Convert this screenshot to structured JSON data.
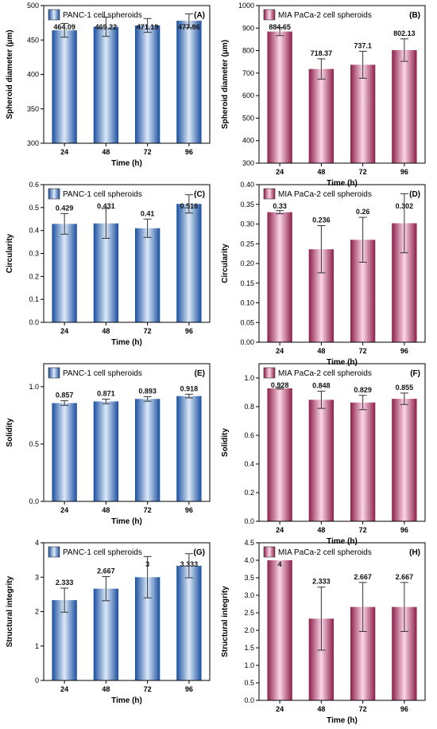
{
  "colors": {
    "blue_dark": "#1a4f9e",
    "blue_light": "#dce9f8",
    "pink_dark": "#8c1f4a",
    "pink_light": "#fbd6e6",
    "axis": "#000000"
  },
  "chart_data": [
    {
      "panel": "(A)",
      "type": "bar",
      "legend": "PANC-1 cell spheroids",
      "legend_position": "top-left",
      "color": "blue",
      "xlabel": "Time (h)",
      "ylabel": "Spheroid diameter (μm)",
      "categories": [
        "24",
        "48",
        "72",
        "96"
      ],
      "values": [
        464.09,
        469.22,
        471.19,
        477.96
      ],
      "value_labels": [
        "464.09",
        "469.22",
        "471.19",
        "477.96"
      ],
      "errors": [
        10,
        14,
        10,
        10
      ],
      "ylim": [
        300,
        500
      ],
      "yticks": [
        "300",
        "350",
        "400",
        "450",
        "500"
      ]
    },
    {
      "panel": "(B)",
      "type": "bar",
      "legend": "MIA PaCa-2 cell spheroids",
      "legend_position": "top-left",
      "color": "pink",
      "xlabel": "Time (h)",
      "ylabel": "Spheroid diameter (μm)",
      "categories": [
        "24",
        "48",
        "72",
        "96"
      ],
      "values": [
        884.65,
        718.37,
        737.1,
        802.13
      ],
      "value_labels": [
        "884.65",
        "718.37",
        "737.1",
        "802.13"
      ],
      "errors": [
        18,
        45,
        60,
        50
      ],
      "ylim": [
        300,
        1000
      ],
      "yticks": [
        "300",
        "400",
        "500",
        "600",
        "700",
        "800",
        "900",
        "1000"
      ]
    },
    {
      "panel": "(C)",
      "type": "bar",
      "legend": "PANC-1 cell spheroids",
      "legend_position": "top-left",
      "color": "blue",
      "xlabel": "Time (h)",
      "ylabel": "Circularity",
      "categories": [
        "24",
        "48",
        "72",
        "96"
      ],
      "values": [
        0.429,
        0.431,
        0.41,
        0.516
      ],
      "value_labels": [
        "0.429",
        "0.431",
        "0.41",
        "0.516"
      ],
      "errors": [
        0.045,
        0.065,
        0.04,
        0.04
      ],
      "ylim": [
        0,
        0.6
      ],
      "yticks": [
        "0.0",
        "0.1",
        "0.2",
        "0.3",
        "0.4",
        "0.5",
        "0.6"
      ]
    },
    {
      "panel": "(D)",
      "type": "bar",
      "legend": "MIA PaCa-2 cell spheroids",
      "legend_position": "top-left",
      "color": "pink",
      "xlabel": "Time (h)",
      "ylabel": "Circularity",
      "categories": [
        "24",
        "48",
        "72",
        "96"
      ],
      "values": [
        0.33,
        0.236,
        0.26,
        0.302
      ],
      "value_labels": [
        "0.33",
        "0.236",
        "0.26",
        "0.302"
      ],
      "errors": [
        0.004,
        0.06,
        0.057,
        0.075
      ],
      "ylim": [
        0,
        0.4
      ],
      "yticks": [
        "0.00",
        "0.05",
        "0.10",
        "0.15",
        "0.20",
        "0.25",
        "0.30",
        "0.35",
        "0.40"
      ]
    },
    {
      "panel": "(E)",
      "type": "bar",
      "legend": "PANC-1 cell spheroids",
      "legend_position": "top-left",
      "color": "blue",
      "xlabel": "Time (h)",
      "ylabel": "Solidity",
      "categories": [
        "24",
        "48",
        "72",
        "96"
      ],
      "values": [
        0.857,
        0.871,
        0.893,
        0.918
      ],
      "value_labels": [
        "0.857",
        "0.871",
        "0.893",
        "0.918"
      ],
      "errors": [
        0.02,
        0.02,
        0.02,
        0.016
      ],
      "ylim": [
        0,
        1.2
      ],
      "yticks": [
        "0.0",
        "0.5",
        "1.0"
      ]
    },
    {
      "panel": "(F)",
      "type": "bar",
      "legend": "MIA PaCa-2 cell spheroids",
      "legend_position": "top-left",
      "color": "pink",
      "xlabel": "Time (h)",
      "ylabel": "Solidity",
      "categories": [
        "24",
        "48",
        "72",
        "96"
      ],
      "values": [
        0.928,
        0.848,
        0.829,
        0.855
      ],
      "value_labels": [
        "0.928",
        "0.848",
        "0.829",
        "0.855"
      ],
      "errors": [
        0.005,
        0.06,
        0.05,
        0.04
      ],
      "ylim": [
        0,
        1.1
      ],
      "yticks": [
        "0.0",
        "0.2",
        "0.4",
        "0.6",
        "0.8",
        "1.0"
      ]
    },
    {
      "panel": "(G)",
      "type": "bar",
      "legend": "PANC-1 cell spheroids",
      "legend_position": "top-left",
      "color": "blue",
      "xlabel": "Time (h)",
      "ylabel": "Structural integrity",
      "categories": [
        "24",
        "48",
        "72",
        "96"
      ],
      "values": [
        2.333,
        2.667,
        3,
        3.333
      ],
      "value_labels": [
        "2.333",
        "2.667",
        "3",
        "3.333"
      ],
      "errors": [
        0.35,
        0.35,
        0.6,
        0.35
      ],
      "ylim": [
        0,
        4
      ],
      "yticks": [
        "0",
        "1",
        "2",
        "3",
        "4"
      ]
    },
    {
      "panel": "(H)",
      "type": "bar",
      "legend": "MIA PaCa-2 cell spheroids",
      "legend_position": "top-left",
      "color": "pink",
      "xlabel": "Time (h)",
      "ylabel": "Structural integrity",
      "categories": [
        "24",
        "48",
        "72",
        "96"
      ],
      "values": [
        4,
        2.333,
        2.667,
        2.667
      ],
      "value_labels": [
        "4",
        "2.333",
        "2.667",
        "2.667"
      ],
      "errors": [
        0,
        0.9,
        0.7,
        0.7
      ],
      "ylim": [
        0,
        4.5
      ],
      "yticks": [
        "0.0",
        "0.5",
        "1.0",
        "1.5",
        "2.0",
        "2.5",
        "3.0",
        "3.5",
        "4.0",
        "4.5"
      ]
    }
  ]
}
